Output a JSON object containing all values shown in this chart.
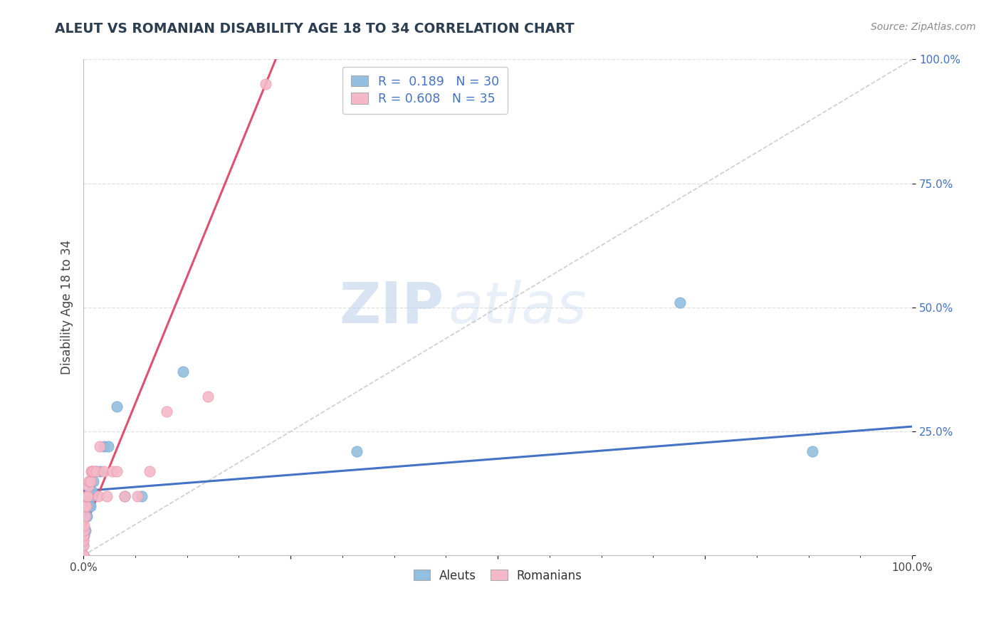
{
  "title": "ALEUT VS ROMANIAN DISABILITY AGE 18 TO 34 CORRELATION CHART",
  "source": "Source: ZipAtlas.com",
  "ylabel": "Disability Age 18 to 34",
  "xlim": [
    0.0,
    1.0
  ],
  "ylim": [
    0.0,
    1.0
  ],
  "xticks": [
    0.0,
    0.25,
    0.5,
    0.75,
    1.0
  ],
  "yticks": [
    0.0,
    0.25,
    0.5,
    0.75,
    1.0
  ],
  "aleut_color": "#92bfdf",
  "aleut_edge": "#6aa3cc",
  "romanian_color": "#f5b8c8",
  "romanian_edge": "#e890a8",
  "aleut_R": 0.189,
  "aleut_N": 30,
  "romanian_R": 0.608,
  "romanian_N": 35,
  "watermark_zip": "ZIP",
  "watermark_atlas": "atlas",
  "aleut_x": [
    0.0,
    0.0,
    0.0,
    0.0,
    0.0,
    0.0,
    0.001,
    0.001,
    0.002,
    0.003,
    0.003,
    0.004,
    0.005,
    0.006,
    0.007,
    0.008,
    0.009,
    0.01,
    0.012,
    0.015,
    0.02,
    0.025,
    0.03,
    0.04,
    0.05,
    0.07,
    0.12,
    0.33,
    0.72,
    0.88
  ],
  "aleut_y": [
    0.0,
    0.0,
    0.0,
    0.0,
    0.02,
    0.03,
    0.04,
    0.05,
    0.05,
    0.08,
    0.08,
    0.08,
    0.1,
    0.1,
    0.1,
    0.1,
    0.12,
    0.13,
    0.15,
    0.17,
    0.17,
    0.22,
    0.22,
    0.3,
    0.12,
    0.12,
    0.37,
    0.21,
    0.51,
    0.21
  ],
  "romanian_x": [
    0.0,
    0.0,
    0.0,
    0.0,
    0.0,
    0.0,
    0.0,
    0.0,
    0.001,
    0.001,
    0.002,
    0.002,
    0.003,
    0.003,
    0.004,
    0.005,
    0.006,
    0.007,
    0.008,
    0.009,
    0.01,
    0.012,
    0.015,
    0.018,
    0.02,
    0.025,
    0.028,
    0.035,
    0.04,
    0.05,
    0.065,
    0.08,
    0.1,
    0.15,
    0.22
  ],
  "romanian_y": [
    0.0,
    0.0,
    0.0,
    0.0,
    0.0,
    0.02,
    0.03,
    0.04,
    0.05,
    0.06,
    0.08,
    0.1,
    0.1,
    0.12,
    0.12,
    0.12,
    0.14,
    0.15,
    0.15,
    0.17,
    0.17,
    0.17,
    0.17,
    0.12,
    0.22,
    0.17,
    0.12,
    0.17,
    0.17,
    0.12,
    0.12,
    0.17,
    0.29,
    0.32,
    0.95
  ],
  "aleut_line_color": "#4472c4",
  "romanian_line_color": "#e05070",
  "ref_line_color": "#c8c8c8",
  "grid_color": "#d8d8d8",
  "title_color": "#2c3e50",
  "source_color": "#888888",
  "ytick_color": "#4472c4",
  "xtick_color": "#444444"
}
